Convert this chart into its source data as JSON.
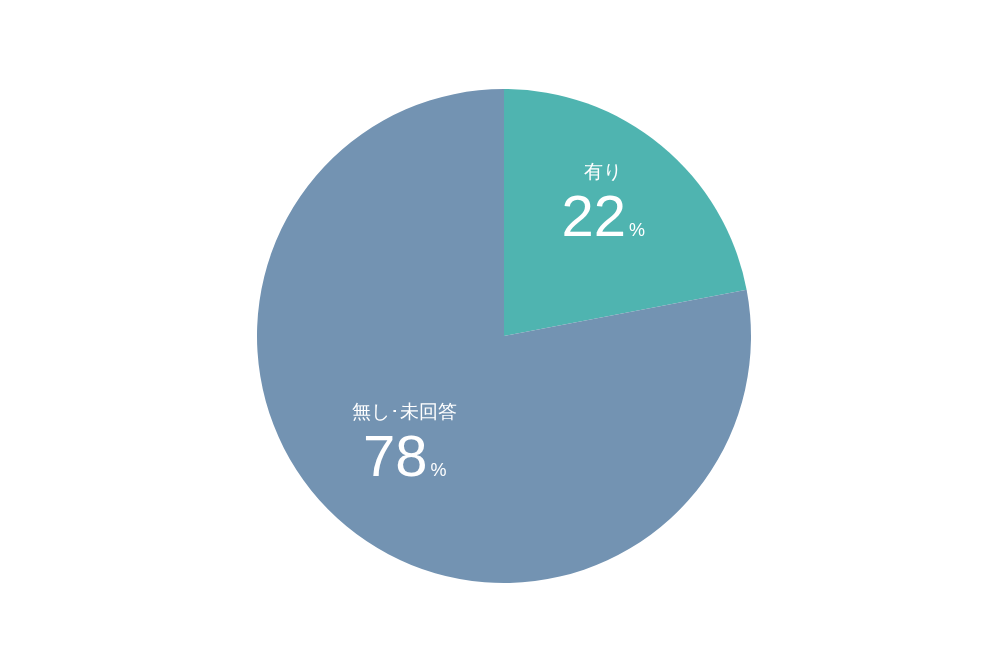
{
  "chart_data": {
    "type": "pie",
    "categories": [
      "有り",
      "無し･未回答"
    ],
    "values": [
      22,
      78
    ],
    "colors": [
      "#4fb4b0",
      "#7393b2"
    ],
    "value_labels": [
      "22%",
      "78%"
    ],
    "legend": false
  }
}
